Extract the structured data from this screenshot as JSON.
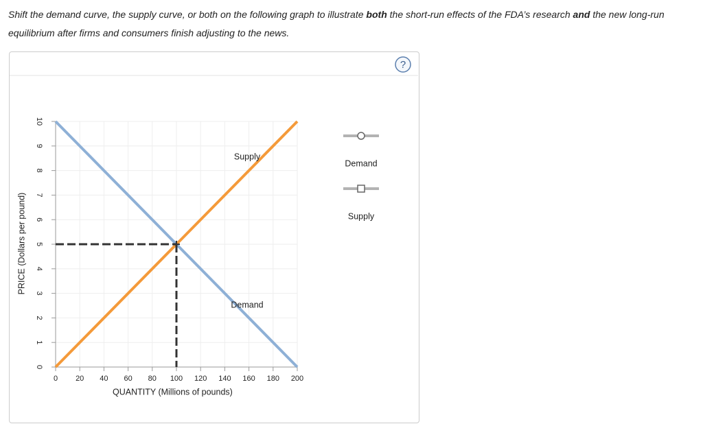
{
  "instructions": {
    "parts": [
      "Shift the demand curve, the supply curve, or both on the following graph to illustrate ",
      "both",
      " the short-run effects of the FDA’s research ",
      "and",
      " the new long-run equilibrium after firms and consumers finish adjusting to the news."
    ]
  },
  "help_icon": "?",
  "chart_data": {
    "type": "line",
    "x_label": "QUANTITY (Millions of pounds)",
    "y_label": "PRICE (Dollars per pound)",
    "x": [
      0,
      200
    ],
    "series": [
      {
        "name": "Demand",
        "color": "#8eb0d6",
        "values": [
          10,
          0
        ]
      },
      {
        "name": "Supply",
        "color": "#f49a3a",
        "values": [
          0,
          10
        ]
      }
    ],
    "equilibrium": {
      "x": 100,
      "y": 5
    },
    "xlim": [
      0,
      200
    ],
    "ylim": [
      0,
      10
    ],
    "xticks": [
      0,
      20,
      40,
      60,
      80,
      100,
      120,
      140,
      160,
      180,
      200
    ],
    "yticks": [
      0,
      1,
      2,
      3,
      4,
      5,
      6,
      7,
      8,
      9,
      10
    ],
    "grid": true
  }
}
